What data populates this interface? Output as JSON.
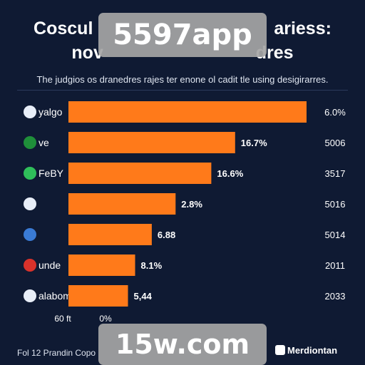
{
  "chart_data": {
    "type": "bar",
    "orientation": "horizontal",
    "title_lines": [
      "Coscul",
      "nov",
      "ariess:",
      "dres"
    ],
    "subtitle": "The judgios os dranedres rajes ter enone ol cadit tle using desigirarres.",
    "categories": [
      "yalgo",
      "ve",
      "FeBY",
      "",
      "",
      "unde",
      "alabome"
    ],
    "bar_labels": [
      "",
      "16.7%",
      "16.6%",
      "2.8%",
      "6.88",
      "8.1%",
      "5,44"
    ],
    "right_labels": [
      "6.0%",
      "5006",
      "3517",
      "5016",
      "5014",
      "2011",
      "2033"
    ],
    "values": [
      100,
      70,
      60,
      45,
      35,
      28,
      25
    ],
    "xlim": [
      0,
      100
    ],
    "x_tick_labels": [
      "60 ft",
      "0%"
    ],
    "bar_color": "#ff7a1a",
    "grid": false,
    "legend": "none"
  },
  "footer": {
    "source": "Fol 12 Prandin Copo",
    "brand": "Merdiontan"
  },
  "watermarks": {
    "top": "5597app",
    "bottom": "15w.com"
  },
  "colors": {
    "background": "#0f1a33",
    "bar": "#ff7a1a",
    "text": "#ffffff"
  }
}
